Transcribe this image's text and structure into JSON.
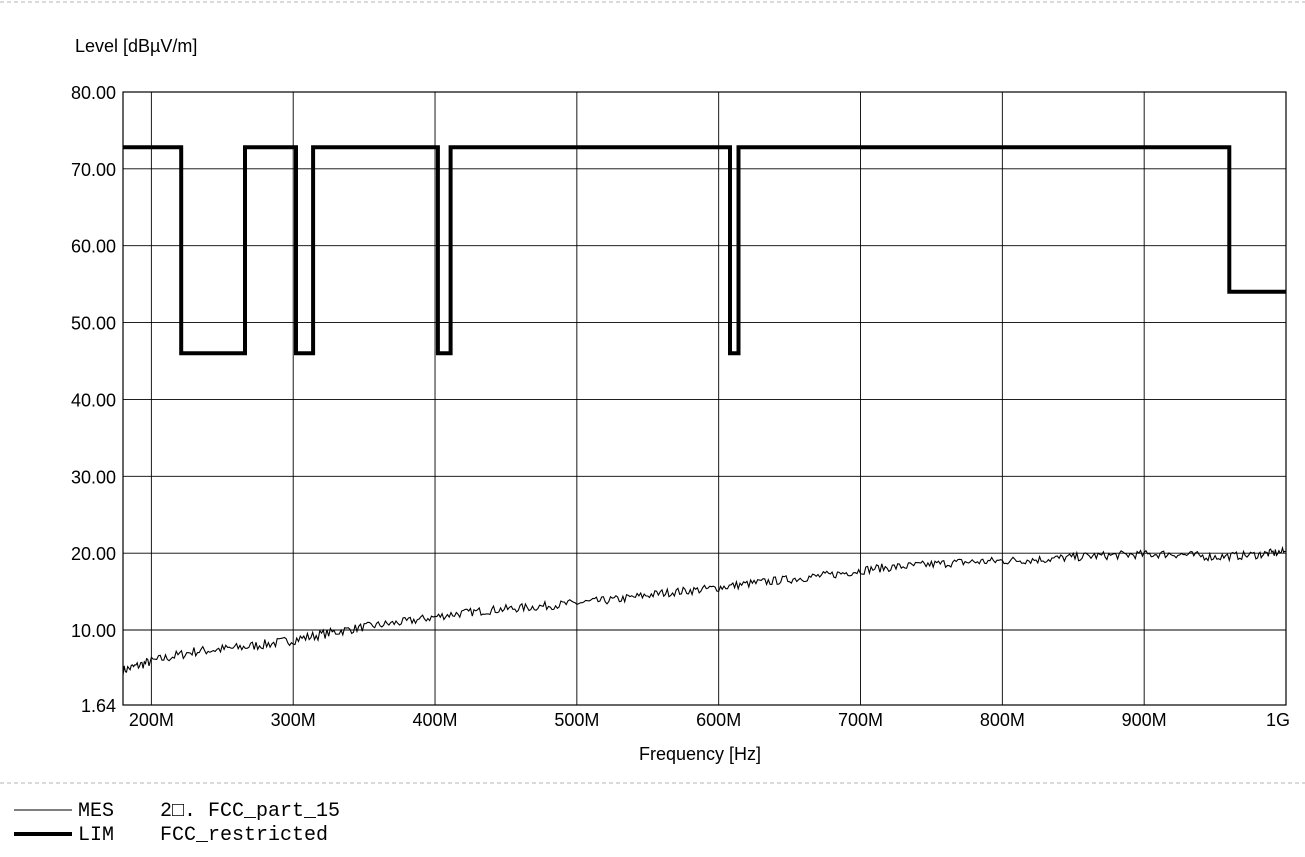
{
  "chart_data": {
    "type": "line",
    "xlabel": "Frequency [Hz]",
    "ylabel": "Level [dBµV/m]",
    "xlim": [
      180,
      1000
    ],
    "ylim": [
      1.64,
      80.0
    ],
    "x_ticks": [
      200,
      300,
      400,
      500,
      600,
      700,
      800,
      900,
      1000
    ],
    "x_tick_labels": [
      "200M",
      "300M",
      "400M",
      "500M",
      "600M",
      "700M",
      "800M",
      "900M",
      "1G"
    ],
    "y_ticks": [
      1.64,
      10,
      20,
      30,
      40,
      50,
      60,
      70,
      80
    ],
    "y_tick_labels": [
      "1.64",
      "10.00",
      "20.00",
      "30.00",
      "40.00",
      "50.00",
      "60.00",
      "70.00",
      "80.00"
    ],
    "grid": true,
    "series": [
      {
        "name": "MES",
        "style": "thin",
        "color": "#000000",
        "x": [
          180,
          200,
          230,
          260,
          290,
          320,
          350,
          380,
          410,
          440,
          470,
          500,
          530,
          560,
          590,
          620,
          650,
          680,
          710,
          740,
          770,
          800,
          830,
          860,
          890,
          920,
          950,
          980,
          1000
        ],
        "values": [
          5.5,
          6.5,
          7.6,
          8.0,
          8.6,
          9.5,
          10.4,
          11.1,
          12.0,
          12.6,
          13.0,
          13.5,
          14.0,
          14.8,
          15.3,
          16.0,
          16.6,
          17.2,
          18.0,
          18.4,
          18.8,
          19.0,
          19.2,
          19.6,
          19.8,
          19.9,
          19.5,
          19.8,
          20.2
        ]
      },
      {
        "name": "LIM",
        "style": "thick",
        "color": "#000000",
        "x": [
          180,
          221,
          221,
          266,
          266,
          302,
          302,
          314,
          314,
          402,
          402,
          411,
          411,
          608,
          608,
          614,
          614,
          960,
          960,
          1000
        ],
        "values": [
          72.8,
          72.8,
          46.0,
          46.0,
          72.8,
          72.8,
          46.0,
          46.0,
          72.8,
          72.8,
          46.0,
          46.0,
          72.8,
          72.8,
          46.0,
          46.0,
          72.8,
          72.8,
          54.0,
          54.0
        ]
      }
    ]
  },
  "legend": [
    {
      "key": "MES",
      "text": "2□. FCC_part_15"
    },
    {
      "key": "LIM",
      "text": "FCC_restricted"
    }
  ]
}
